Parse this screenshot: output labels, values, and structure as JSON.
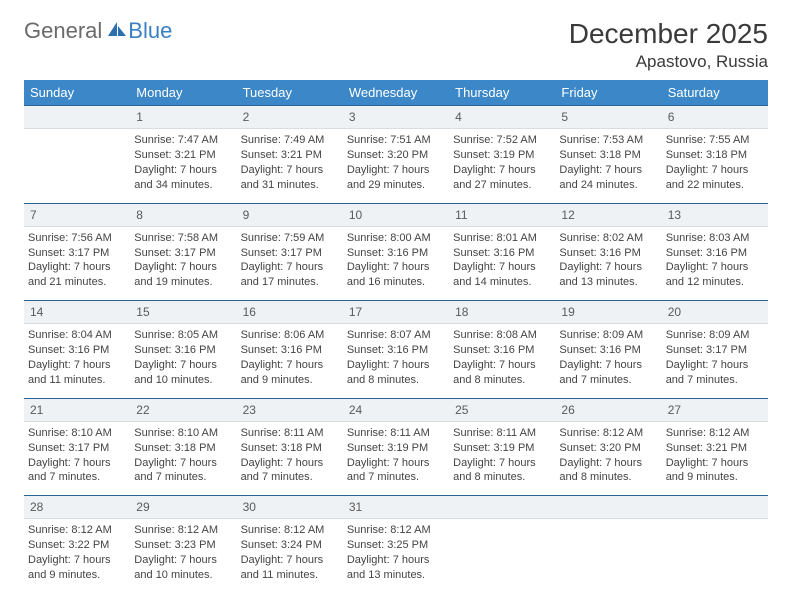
{
  "brand": {
    "word1": "General",
    "word2": "Blue"
  },
  "colors": {
    "header_bg": "#3b87c8",
    "header_text": "#ffffff",
    "daynum_bg": "#eef2f5",
    "daynum_border_top": "#2a6496",
    "body_text": "#444444",
    "logo_gray": "#6a6a6a",
    "logo_blue": "#3b7fc4"
  },
  "title": {
    "month": "December 2025",
    "location": "Apastovo, Russia"
  },
  "days_of_week": [
    "Sunday",
    "Monday",
    "Tuesday",
    "Wednesday",
    "Thursday",
    "Friday",
    "Saturday"
  ],
  "weeks": [
    {
      "nums": [
        "",
        "1",
        "2",
        "3",
        "4",
        "5",
        "6"
      ],
      "cells": [
        null,
        {
          "sunrise": "Sunrise: 7:47 AM",
          "sunset": "Sunset: 3:21 PM",
          "day1": "Daylight: 7 hours",
          "day2": "and 34 minutes."
        },
        {
          "sunrise": "Sunrise: 7:49 AM",
          "sunset": "Sunset: 3:21 PM",
          "day1": "Daylight: 7 hours",
          "day2": "and 31 minutes."
        },
        {
          "sunrise": "Sunrise: 7:51 AM",
          "sunset": "Sunset: 3:20 PM",
          "day1": "Daylight: 7 hours",
          "day2": "and 29 minutes."
        },
        {
          "sunrise": "Sunrise: 7:52 AM",
          "sunset": "Sunset: 3:19 PM",
          "day1": "Daylight: 7 hours",
          "day2": "and 27 minutes."
        },
        {
          "sunrise": "Sunrise: 7:53 AM",
          "sunset": "Sunset: 3:18 PM",
          "day1": "Daylight: 7 hours",
          "day2": "and 24 minutes."
        },
        {
          "sunrise": "Sunrise: 7:55 AM",
          "sunset": "Sunset: 3:18 PM",
          "day1": "Daylight: 7 hours",
          "day2": "and 22 minutes."
        }
      ]
    },
    {
      "nums": [
        "7",
        "8",
        "9",
        "10",
        "11",
        "12",
        "13"
      ],
      "cells": [
        {
          "sunrise": "Sunrise: 7:56 AM",
          "sunset": "Sunset: 3:17 PM",
          "day1": "Daylight: 7 hours",
          "day2": "and 21 minutes."
        },
        {
          "sunrise": "Sunrise: 7:58 AM",
          "sunset": "Sunset: 3:17 PM",
          "day1": "Daylight: 7 hours",
          "day2": "and 19 minutes."
        },
        {
          "sunrise": "Sunrise: 7:59 AM",
          "sunset": "Sunset: 3:17 PM",
          "day1": "Daylight: 7 hours",
          "day2": "and 17 minutes."
        },
        {
          "sunrise": "Sunrise: 8:00 AM",
          "sunset": "Sunset: 3:16 PM",
          "day1": "Daylight: 7 hours",
          "day2": "and 16 minutes."
        },
        {
          "sunrise": "Sunrise: 8:01 AM",
          "sunset": "Sunset: 3:16 PM",
          "day1": "Daylight: 7 hours",
          "day2": "and 14 minutes."
        },
        {
          "sunrise": "Sunrise: 8:02 AM",
          "sunset": "Sunset: 3:16 PM",
          "day1": "Daylight: 7 hours",
          "day2": "and 13 minutes."
        },
        {
          "sunrise": "Sunrise: 8:03 AM",
          "sunset": "Sunset: 3:16 PM",
          "day1": "Daylight: 7 hours",
          "day2": "and 12 minutes."
        }
      ]
    },
    {
      "nums": [
        "14",
        "15",
        "16",
        "17",
        "18",
        "19",
        "20"
      ],
      "cells": [
        {
          "sunrise": "Sunrise: 8:04 AM",
          "sunset": "Sunset: 3:16 PM",
          "day1": "Daylight: 7 hours",
          "day2": "and 11 minutes."
        },
        {
          "sunrise": "Sunrise: 8:05 AM",
          "sunset": "Sunset: 3:16 PM",
          "day1": "Daylight: 7 hours",
          "day2": "and 10 minutes."
        },
        {
          "sunrise": "Sunrise: 8:06 AM",
          "sunset": "Sunset: 3:16 PM",
          "day1": "Daylight: 7 hours",
          "day2": "and 9 minutes."
        },
        {
          "sunrise": "Sunrise: 8:07 AM",
          "sunset": "Sunset: 3:16 PM",
          "day1": "Daylight: 7 hours",
          "day2": "and 8 minutes."
        },
        {
          "sunrise": "Sunrise: 8:08 AM",
          "sunset": "Sunset: 3:16 PM",
          "day1": "Daylight: 7 hours",
          "day2": "and 8 minutes."
        },
        {
          "sunrise": "Sunrise: 8:09 AM",
          "sunset": "Sunset: 3:16 PM",
          "day1": "Daylight: 7 hours",
          "day2": "and 7 minutes."
        },
        {
          "sunrise": "Sunrise: 8:09 AM",
          "sunset": "Sunset: 3:17 PM",
          "day1": "Daylight: 7 hours",
          "day2": "and 7 minutes."
        }
      ]
    },
    {
      "nums": [
        "21",
        "22",
        "23",
        "24",
        "25",
        "26",
        "27"
      ],
      "cells": [
        {
          "sunrise": "Sunrise: 8:10 AM",
          "sunset": "Sunset: 3:17 PM",
          "day1": "Daylight: 7 hours",
          "day2": "and 7 minutes."
        },
        {
          "sunrise": "Sunrise: 8:10 AM",
          "sunset": "Sunset: 3:18 PM",
          "day1": "Daylight: 7 hours",
          "day2": "and 7 minutes."
        },
        {
          "sunrise": "Sunrise: 8:11 AM",
          "sunset": "Sunset: 3:18 PM",
          "day1": "Daylight: 7 hours",
          "day2": "and 7 minutes."
        },
        {
          "sunrise": "Sunrise: 8:11 AM",
          "sunset": "Sunset: 3:19 PM",
          "day1": "Daylight: 7 hours",
          "day2": "and 7 minutes."
        },
        {
          "sunrise": "Sunrise: 8:11 AM",
          "sunset": "Sunset: 3:19 PM",
          "day1": "Daylight: 7 hours",
          "day2": "and 8 minutes."
        },
        {
          "sunrise": "Sunrise: 8:12 AM",
          "sunset": "Sunset: 3:20 PM",
          "day1": "Daylight: 7 hours",
          "day2": "and 8 minutes."
        },
        {
          "sunrise": "Sunrise: 8:12 AM",
          "sunset": "Sunset: 3:21 PM",
          "day1": "Daylight: 7 hours",
          "day2": "and 9 minutes."
        }
      ]
    },
    {
      "nums": [
        "28",
        "29",
        "30",
        "31",
        "",
        "",
        ""
      ],
      "cells": [
        {
          "sunrise": "Sunrise: 8:12 AM",
          "sunset": "Sunset: 3:22 PM",
          "day1": "Daylight: 7 hours",
          "day2": "and 9 minutes."
        },
        {
          "sunrise": "Sunrise: 8:12 AM",
          "sunset": "Sunset: 3:23 PM",
          "day1": "Daylight: 7 hours",
          "day2": "and 10 minutes."
        },
        {
          "sunrise": "Sunrise: 8:12 AM",
          "sunset": "Sunset: 3:24 PM",
          "day1": "Daylight: 7 hours",
          "day2": "and 11 minutes."
        },
        {
          "sunrise": "Sunrise: 8:12 AM",
          "sunset": "Sunset: 3:25 PM",
          "day1": "Daylight: 7 hours",
          "day2": "and 13 minutes."
        },
        null,
        null,
        null
      ]
    }
  ]
}
